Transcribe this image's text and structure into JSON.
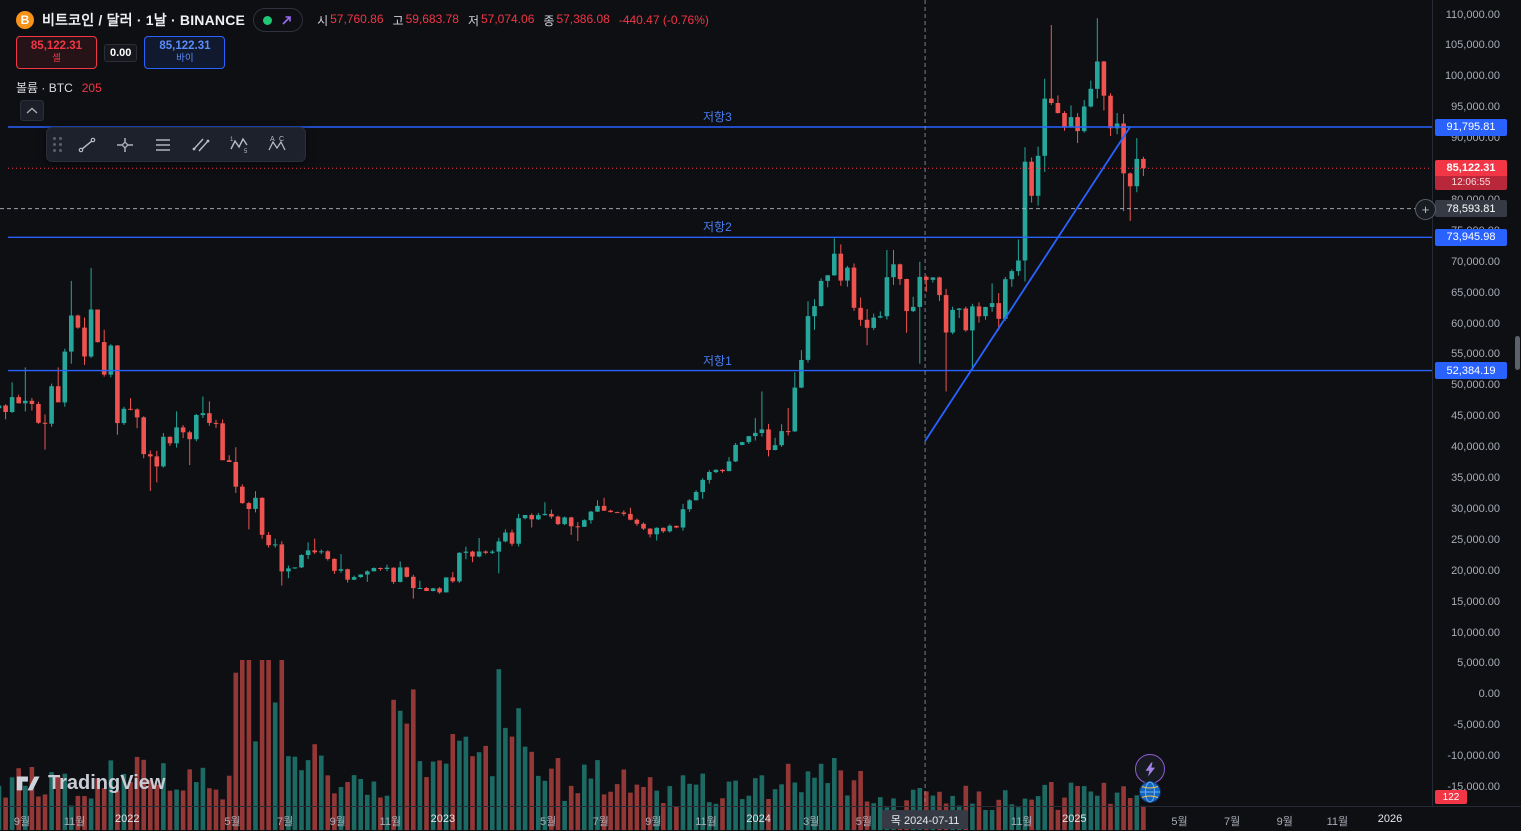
{
  "colors": {
    "background": "#0e0f13",
    "candle_up": "#26a69a",
    "candle_down": "#ef5350",
    "volume_up": "rgba(38,166,154,0.6)",
    "volume_down": "rgba(239,83,80,0.6)",
    "drawing_blue": "#2962ff",
    "sell_red": "#f23645",
    "buy_blue": "#2962ff",
    "crosshair": "#8b919e",
    "axis_text": "#a8acb6"
  },
  "header": {
    "symbol_title": "비트코인 / 달러 · 1날 · BINANCE",
    "ohlc": {
      "open_label": "시",
      "open": "57,760.86",
      "high_label": "고",
      "high": "59,683.78",
      "low_label": "저",
      "low": "57,074.06",
      "close_label": "종",
      "close": "57,386.08",
      "change": "-440.47 (-0.76%)"
    },
    "trade_widget": {
      "sell_price": "85,122.31",
      "sell_label": "셀",
      "spread": "0.00",
      "buy_price": "85,122.31",
      "buy_label": "바이"
    },
    "indicator": {
      "label": "볼륨 · BTC",
      "value": "205"
    }
  },
  "toolbar_tools": [
    "trend-line",
    "cross-line",
    "fib-retracement",
    "parallel-channel",
    "elliott-wave",
    "xabcd-pattern"
  ],
  "drawings": {
    "resistance3": {
      "label": "저항3",
      "price_label": "91,795.81"
    },
    "resistance2": {
      "label": "저항2",
      "price_label": "73,945.98"
    },
    "resistance1": {
      "label": "저항1",
      "price_label": "52,384.19"
    }
  },
  "axis": {
    "y_axis_labels": [
      "110,000.00",
      "105,000.00",
      "100,000.00",
      "95,000.00",
      "90,000.00",
      "85,000.00",
      "80,000.00",
      "75,000.00",
      "70,000.00",
      "65,000.00",
      "60,000.00",
      "55,000.00",
      "50,000.00",
      "45,000.00",
      "40,000.00",
      "35,000.00",
      "30,000.00",
      "25,000.00",
      "20,000.00",
      "15,000.00",
      "10,000.00",
      "5,000.00",
      "0.00",
      "-5,000.00",
      "-10,000.00",
      "-15,000.00"
    ],
    "x_axis_labels": [
      {
        "label": "9월",
        "t": 0
      },
      {
        "label": "11월",
        "t": 2
      },
      {
        "label": "2022",
        "t": 4,
        "year": true
      },
      {
        "label": "5월",
        "t": 8
      },
      {
        "label": "7월",
        "t": 10
      },
      {
        "label": "9월",
        "t": 12
      },
      {
        "label": "11월",
        "t": 14
      },
      {
        "label": "2023",
        "t": 16,
        "year": true
      },
      {
        "label": "5월",
        "t": 20
      },
      {
        "label": "7월",
        "t": 22
      },
      {
        "label": "9월",
        "t": 24
      },
      {
        "label": "11월",
        "t": 26
      },
      {
        "label": "2024",
        "t": 28,
        "year": true
      },
      {
        "label": "3월",
        "t": 30
      },
      {
        "label": "5월",
        "t": 32
      },
      {
        "label": "11월",
        "t": 38
      },
      {
        "label": "2025",
        "t": 40,
        "year": true
      },
      {
        "label": "5월",
        "t": 44
      },
      {
        "label": "7월",
        "t": 46
      },
      {
        "label": "9월",
        "t": 48
      },
      {
        "label": "11월",
        "t": 50
      },
      {
        "label": "2026",
        "t": 52,
        "year": true
      }
    ],
    "crosshair": {
      "date_label": "목 2024-07-11",
      "price_label": "78,593.81"
    },
    "last_price": {
      "price": "85,122.31",
      "countdown": "12:06:55"
    },
    "volume_badge": "122"
  },
  "watermark": "TradingView",
  "chart_data": {
    "type": "candlestick",
    "title": "비트코인 / 달러 · 1날 · BINANCE",
    "interval": "1날",
    "exchange": "BINANCE",
    "price_axis_visible_range": [
      -15000,
      110000
    ],
    "time_axis_start": "2021-08",
    "time_axis_end": "2026-01",
    "columns": [
      "month",
      "open",
      "high",
      "low",
      "close",
      "relative_volume"
    ],
    "monthly_ohlcv": [
      [
        "2021-08",
        46300,
        50500,
        44500,
        47100,
        0.32
      ],
      [
        "2021-09",
        47100,
        52900,
        39600,
        43800,
        0.34
      ],
      [
        "2021-10",
        43800,
        66900,
        43300,
        61300,
        0.3
      ],
      [
        "2021-11",
        61300,
        69000,
        53300,
        57000,
        0.32
      ],
      [
        "2021-12",
        57000,
        59000,
        42000,
        46200,
        0.36
      ],
      [
        "2022-01",
        46200,
        47900,
        32900,
        38500,
        0.48
      ],
      [
        "2022-02",
        38500,
        45800,
        34300,
        43200,
        0.38
      ],
      [
        "2022-03",
        43200,
        48200,
        37100,
        45500,
        0.34
      ],
      [
        "2022-04",
        45500,
        47400,
        37600,
        37600,
        0.34
      ],
      [
        "2022-05",
        37600,
        40000,
        26700,
        31800,
        0.95
      ],
      [
        "2022-06",
        31800,
        31900,
        17600,
        19900,
        1.0
      ],
      [
        "2022-07",
        19900,
        24600,
        18800,
        23300,
        0.5
      ],
      [
        "2022-08",
        23300,
        25200,
        19500,
        20000,
        0.45
      ],
      [
        "2022-09",
        20000,
        22700,
        18100,
        19400,
        0.48
      ],
      [
        "2022-10",
        19400,
        21000,
        18200,
        20500,
        0.38
      ],
      [
        "2022-11",
        20500,
        21500,
        15500,
        17200,
        0.8
      ],
      [
        "2022-12",
        17200,
        18400,
        16300,
        16500,
        0.38
      ],
      [
        "2023-01",
        16500,
        23900,
        16500,
        23100,
        0.5
      ],
      [
        "2023-02",
        23100,
        25300,
        21400,
        23100,
        0.48
      ],
      [
        "2023-03",
        23100,
        29200,
        19600,
        28500,
        0.95
      ],
      [
        "2023-04",
        28500,
        31100,
        27000,
        29200,
        0.42
      ],
      [
        "2023-05",
        29200,
        29900,
        25800,
        27200,
        0.36
      ],
      [
        "2023-06",
        27200,
        31400,
        24800,
        30500,
        0.42
      ],
      [
        "2023-07",
        30500,
        31800,
        28900,
        29200,
        0.32
      ],
      [
        "2023-08",
        29200,
        30200,
        25400,
        25900,
        0.36
      ],
      [
        "2023-09",
        25900,
        27500,
        24900,
        27000,
        0.28
      ],
      [
        "2023-10",
        27000,
        35000,
        26500,
        34700,
        0.36
      ],
      [
        "2023-11",
        34700,
        38400,
        34100,
        37700,
        0.3
      ],
      [
        "2023-12",
        37700,
        44700,
        37600,
        42300,
        0.3
      ],
      [
        "2024-01",
        42300,
        49000,
        38500,
        42600,
        0.3
      ],
      [
        "2024-02",
        42600,
        63600,
        41900,
        61200,
        0.34
      ],
      [
        "2024-03",
        61200,
        73800,
        59000,
        71300,
        0.38
      ],
      [
        "2024-04",
        71300,
        72800,
        59600,
        60600,
        0.3
      ],
      [
        "2024-05",
        60600,
        71900,
        56500,
        67500,
        0.24
      ],
      [
        "2024-06",
        67500,
        71900,
        58500,
        62700,
        0.22
      ],
      [
        "2024-07",
        62700,
        70000,
        53500,
        64600,
        0.22
      ],
      [
        "2024-08",
        64600,
        65600,
        49000,
        58900,
        0.3
      ],
      [
        "2024-09",
        58900,
        66500,
        52500,
        63300,
        0.22
      ],
      [
        "2024-10",
        63300,
        73600,
        58900,
        70200,
        0.22
      ],
      [
        "2024-11",
        70200,
        99600,
        66800,
        96400,
        0.3
      ],
      [
        "2024-12",
        96400,
        108300,
        91200,
        93400,
        0.24
      ],
      [
        "2025-01",
        93400,
        109400,
        89200,
        102400,
        0.22
      ],
      [
        "2025-02",
        102400,
        102500,
        78200,
        84300,
        0.24
      ],
      [
        "2025-03",
        84300,
        90000,
        76600,
        85122,
        0.2
      ]
    ],
    "horizontal_lines": [
      {
        "label": "저항3",
        "price": 91795.81
      },
      {
        "label": "저항2",
        "price": 73945.98
      },
      {
        "label": "저항1",
        "price": 52384.19
      }
    ],
    "trend_line": {
      "from": {
        "date": "2024-07-11",
        "price": 41000
      },
      "to": {
        "date": "2025-03-05",
        "price": 91900
      }
    },
    "last_price": 85122.31,
    "crosshair": {
      "date": "2024-07-11",
      "price": 78593.81
    }
  }
}
